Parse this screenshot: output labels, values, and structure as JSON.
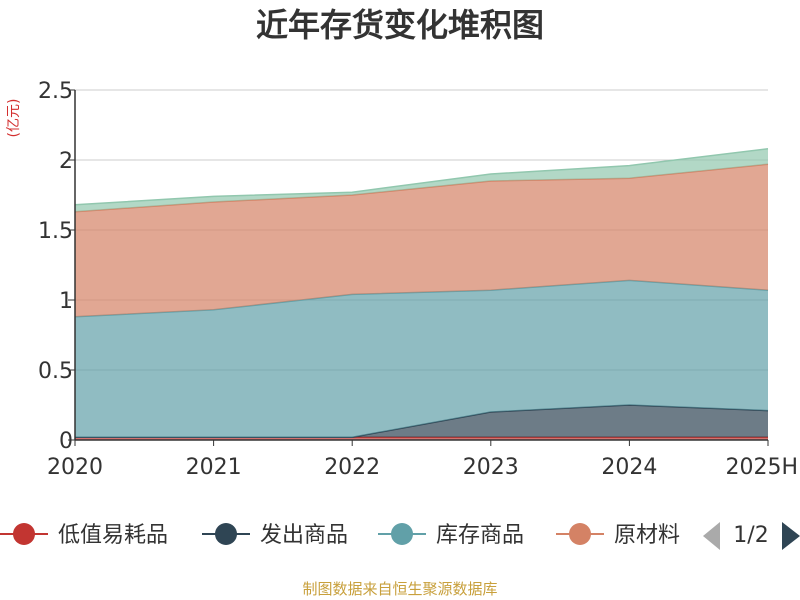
{
  "chart_data": {
    "type": "area",
    "stacked": true,
    "title": "近年存货变化堆积图",
    "unit": "(亿元)",
    "categories": [
      "2020",
      "2021",
      "2022",
      "2023",
      "2024",
      "2025H"
    ],
    "ylim": [
      0,
      2.5
    ],
    "yticks": [
      "0",
      "0.5",
      "1",
      "1.5",
      "2",
      "2.5"
    ],
    "grid": true,
    "series": [
      {
        "name": "低值易耗品",
        "values": [
          0.02,
          0.02,
          0.02,
          0.02,
          0.02,
          0.02
        ],
        "color": "#c23531"
      },
      {
        "name": "发出商品",
        "values": [
          0.0,
          0.0,
          0.0,
          0.18,
          0.23,
          0.19
        ],
        "color": "#2f4554"
      },
      {
        "name": "库存商品",
        "values": [
          0.86,
          0.91,
          1.02,
          0.87,
          0.89,
          0.86
        ],
        "color": "#61a0a8"
      },
      {
        "name": "原材料",
        "values": [
          0.75,
          0.77,
          0.71,
          0.78,
          0.73,
          0.9
        ],
        "color": "#d48265"
      },
      {
        "name": "",
        "values": [
          0.05,
          0.04,
          0.02,
          0.05,
          0.09,
          0.11
        ],
        "color": "#91c7ae"
      }
    ],
    "legend": {
      "position": "bottom",
      "visible_items": [
        "低值易耗品",
        "发出商品",
        "库存商品",
        "原材料"
      ],
      "page": "1/2"
    }
  },
  "source_text": "制图数据来自恒生聚源数据库"
}
